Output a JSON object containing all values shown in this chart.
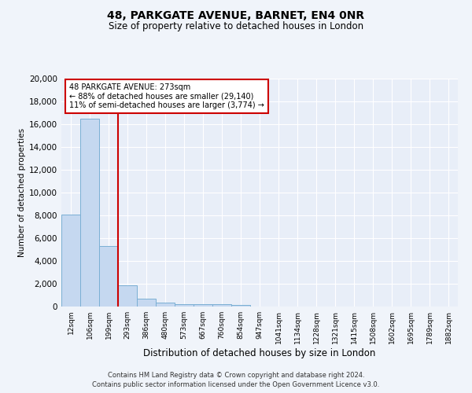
{
  "title": "48, PARKGATE AVENUE, BARNET, EN4 0NR",
  "subtitle": "Size of property relative to detached houses in London",
  "xlabel": "Distribution of detached houses by size in London",
  "ylabel": "Number of detached properties",
  "bar_color": "#c5d8f0",
  "bar_edge_color": "#7aafd4",
  "background_color": "#e8eef8",
  "fig_background_color": "#f0f4fa",
  "grid_color": "#ffffff",
  "annotation_box_color": "#ffffff",
  "annotation_border_color": "#cc0000",
  "vline_color": "#cc0000",
  "categories": [
    "12sqm",
    "106sqm",
    "199sqm",
    "293sqm",
    "386sqm",
    "480sqm",
    "573sqm",
    "667sqm",
    "760sqm",
    "854sqm",
    "947sqm",
    "1041sqm",
    "1134sqm",
    "1228sqm",
    "1321sqm",
    "1415sqm",
    "1508sqm",
    "1602sqm",
    "1695sqm",
    "1789sqm",
    "1882sqm"
  ],
  "values": [
    8100,
    16500,
    5300,
    1850,
    700,
    320,
    230,
    200,
    200,
    170,
    0,
    0,
    0,
    0,
    0,
    0,
    0,
    0,
    0,
    0,
    0
  ],
  "ylim": [
    0,
    20000
  ],
  "yticks": [
    0,
    2000,
    4000,
    6000,
    8000,
    10000,
    12000,
    14000,
    16000,
    18000,
    20000
  ],
  "annotation_text_line1": "48 PARKGATE AVENUE: 273sqm",
  "annotation_text_line2": "← 88% of detached houses are smaller (29,140)",
  "annotation_text_line3": "11% of semi-detached houses are larger (3,774) →",
  "footer_line1": "Contains HM Land Registry data © Crown copyright and database right 2024.",
  "footer_line2": "Contains public sector information licensed under the Open Government Licence v3.0."
}
